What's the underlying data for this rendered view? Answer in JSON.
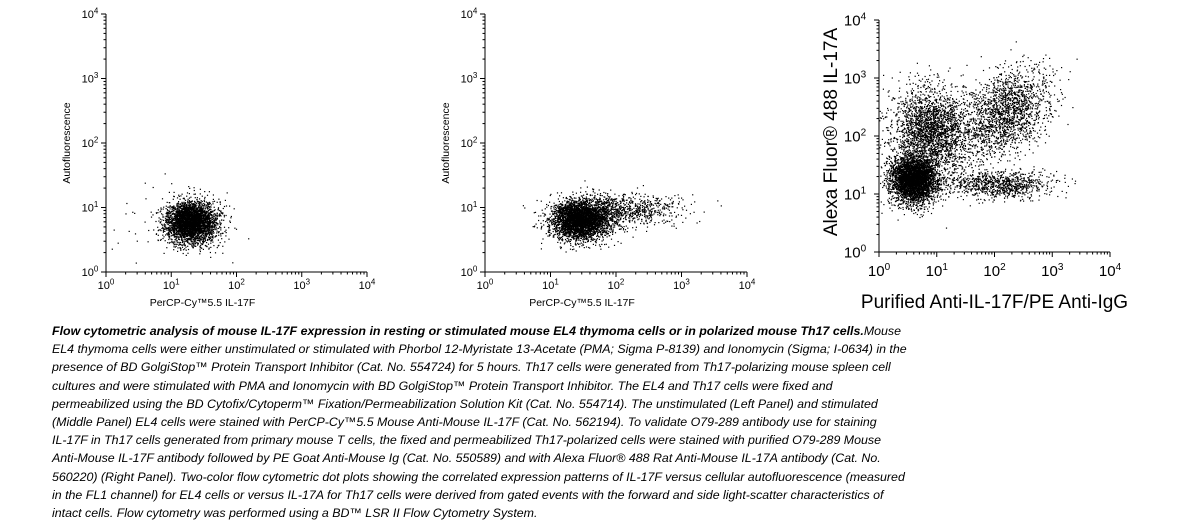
{
  "chart_data": [
    {
      "type": "scatter",
      "panel": "Left Panel",
      "xscale": "log",
      "yscale": "log",
      "xlim": [
        1,
        10000
      ],
      "ylim": [
        1,
        10000
      ],
      "xlabel": "PerCP-Cy™5.5 IL-17F",
      "ylabel": "Autofluorescence",
      "xticks": [
        "10^0",
        "10^1",
        "10^2",
        "10^3",
        "10^4"
      ],
      "yticks": [
        "10^0",
        "10^1",
        "10^2",
        "10^3",
        "10^4"
      ],
      "grid": false,
      "populations": [
        {
          "center": [
            20,
            6
          ],
          "spread_log10": [
            0.19,
            0.16
          ],
          "fraction": 0.985
        },
        {
          "center": [
            12,
            5
          ],
          "spread_log10": [
            0.45,
            0.35
          ],
          "fraction": 0.015
        }
      ]
    },
    {
      "type": "scatter",
      "panel": "Middle Panel",
      "xscale": "log",
      "yscale": "log",
      "xlim": [
        1,
        10000
      ],
      "ylim": [
        1,
        10000
      ],
      "xlabel": "PerCP-Cy™5.5 IL-17F",
      "ylabel": "Autofluorescence",
      "xticks": [
        "10^0",
        "10^1",
        "10^2",
        "10^3",
        "10^4"
      ],
      "yticks": [
        "10^0",
        "10^1",
        "10^2",
        "10^3",
        "10^4"
      ],
      "grid": false,
      "populations": [
        {
          "center": [
            28,
            6.5
          ],
          "spread_log10": [
            0.22,
            0.15
          ],
          "fraction": 0.8
        },
        {
          "center": [
            120,
            9
          ],
          "spread_log10": [
            0.45,
            0.12
          ],
          "fraction": 0.2
        }
      ]
    },
    {
      "type": "scatter",
      "panel": "Right Panel",
      "xscale": "log",
      "yscale": "log",
      "xlim": [
        1,
        10000
      ],
      "ylim": [
        1,
        10000
      ],
      "xlabel": "Purified Anti-IL-17F/PE Anti-IgG",
      "ylabel": "Alexa Fluor® 488  IL-17A",
      "xticks": [
        "10^0",
        "10^1",
        "10^2",
        "10^3",
        "10^4"
      ],
      "yticks": [
        "10^0",
        "10^1",
        "10^2",
        "10^3",
        "10^4"
      ],
      "grid": false,
      "populations": [
        {
          "center": [
            4,
            18
          ],
          "spread_log10": [
            0.2,
            0.2
          ],
          "fraction": 0.42
        },
        {
          "center": [
            8,
            120
          ],
          "spread_log10": [
            0.35,
            0.38
          ],
          "fraction": 0.28
        },
        {
          "center": [
            150,
            250
          ],
          "spread_log10": [
            0.4,
            0.35
          ],
          "fraction": 0.2
        },
        {
          "center": [
            120,
            15
          ],
          "spread_log10": [
            0.45,
            0.12
          ],
          "fraction": 0.1
        }
      ]
    }
  ],
  "caption": {
    "lead": "Flow cytometric analysis of mouse IL-17F expression in resting or stimulated mouse EL4 thymoma cells or in polarized mouse Th17 cells.",
    "lines": [
      "EL4 thymoma cells were either unstimulated or stimulated with Phorbol 12-Myristate 13-Acetate (PMA; Sigma P-8139) and Ionomycin (Sigma; I-0634) in the",
      "presence of BD GolgiStop™ Protein Transport Inhibitor (Cat. No. 554724) for 5 hours. Th17 cells were generated from Th17-polarizing mouse spleen cell",
      "cultures and were stimulated with PMA and Ionomycin with BD GolgiStop™ Protein Transport Inhibitor. The EL4 and Th17 cells were fixed and",
      "permeabilized using the BD Cytofix/Cytoperm™ Fixation/Permeabilization Solution Kit (Cat. No. 554714). The unstimulated (Left Panel) and stimulated",
      "(Middle Panel) EL4 cells were stained with PerCP-Cy™5.5 Mouse Anti-Mouse IL-17F (Cat. No. 562194). To validate O79-289 antibody use for staining",
      "IL-17F in Th17 cells generated from primary mouse T cells, the fixed and permeabilized Th17-polarized cells were stained with purified O79-289 Mouse",
      "Anti-Mouse IL-17F antibody followed by PE Goat Anti-Mouse Ig (Cat. No. 550589) and with Alexa Fluor® 488 Rat Anti-Mouse IL-17A antibody (Cat. No.",
      "560220) (Right Panel). Two-color flow cytometric dot plots showing the correlated expression patterns of IL-17F versus cellular autofluorescence (measured",
      "in the FL1 channel) for EL4 cells or versus IL-17A for Th17 cells were derived from gated events with the forward and side light-scatter characteristics of",
      "intact cells. Flow cytometry was performed using a BD™ LSR II Flow Cytometry System."
    ],
    "first_line_prefix": "Mouse"
  }
}
